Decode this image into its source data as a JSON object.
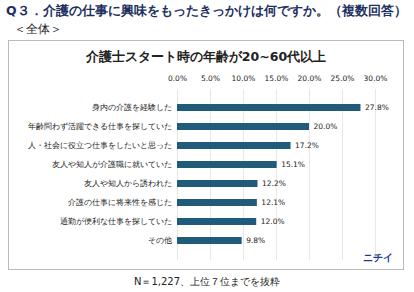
{
  "header": {
    "question": "Q３．介護の仕事に興味をもったきっかけは何ですか。（複数回答）",
    "group": "＜全体＞"
  },
  "chart_data": {
    "type": "bar",
    "orientation": "horizontal",
    "title": "介護士スタート時の年齢が20~60代以上",
    "categories": [
      "身内の介護を経験した",
      "年齢問わず活躍できる仕事を探していた",
      "人・社会に役立つ仕事をしたいと思った",
      "友人や知人が介護職に就いていた",
      "友人や知人から誘われた",
      "介護の仕事に将来性を感じた",
      "通勤が便利な仕事を探していた",
      "その他"
    ],
    "values": [
      27.8,
      20.0,
      17.2,
      15.1,
      12.2,
      12.1,
      12.0,
      9.8
    ],
    "value_labels": [
      "27.8%",
      "20.0%",
      "17.2%",
      "15.1%",
      "12.2%",
      "12.1%",
      "12.0%",
      "9.8%"
    ],
    "data_labels": true,
    "color": "#215b7c",
    "xlim": [
      0,
      30
    ],
    "xticks": [
      {
        "value": 0,
        "label": "0.0%"
      },
      {
        "value": 5,
        "label": "5.0%"
      },
      {
        "value": 10,
        "label": "10.0%"
      },
      {
        "value": 15,
        "label": "15.0%"
      },
      {
        "value": 20,
        "label": "20.0%"
      },
      {
        "value": 25,
        "label": "25.0%"
      },
      {
        "value": 30,
        "label": "30.0%"
      }
    ],
    "grid": true,
    "annotations": [
      "N＝1,227、上位７位までを抜粋",
      "ニチイ"
    ]
  }
}
